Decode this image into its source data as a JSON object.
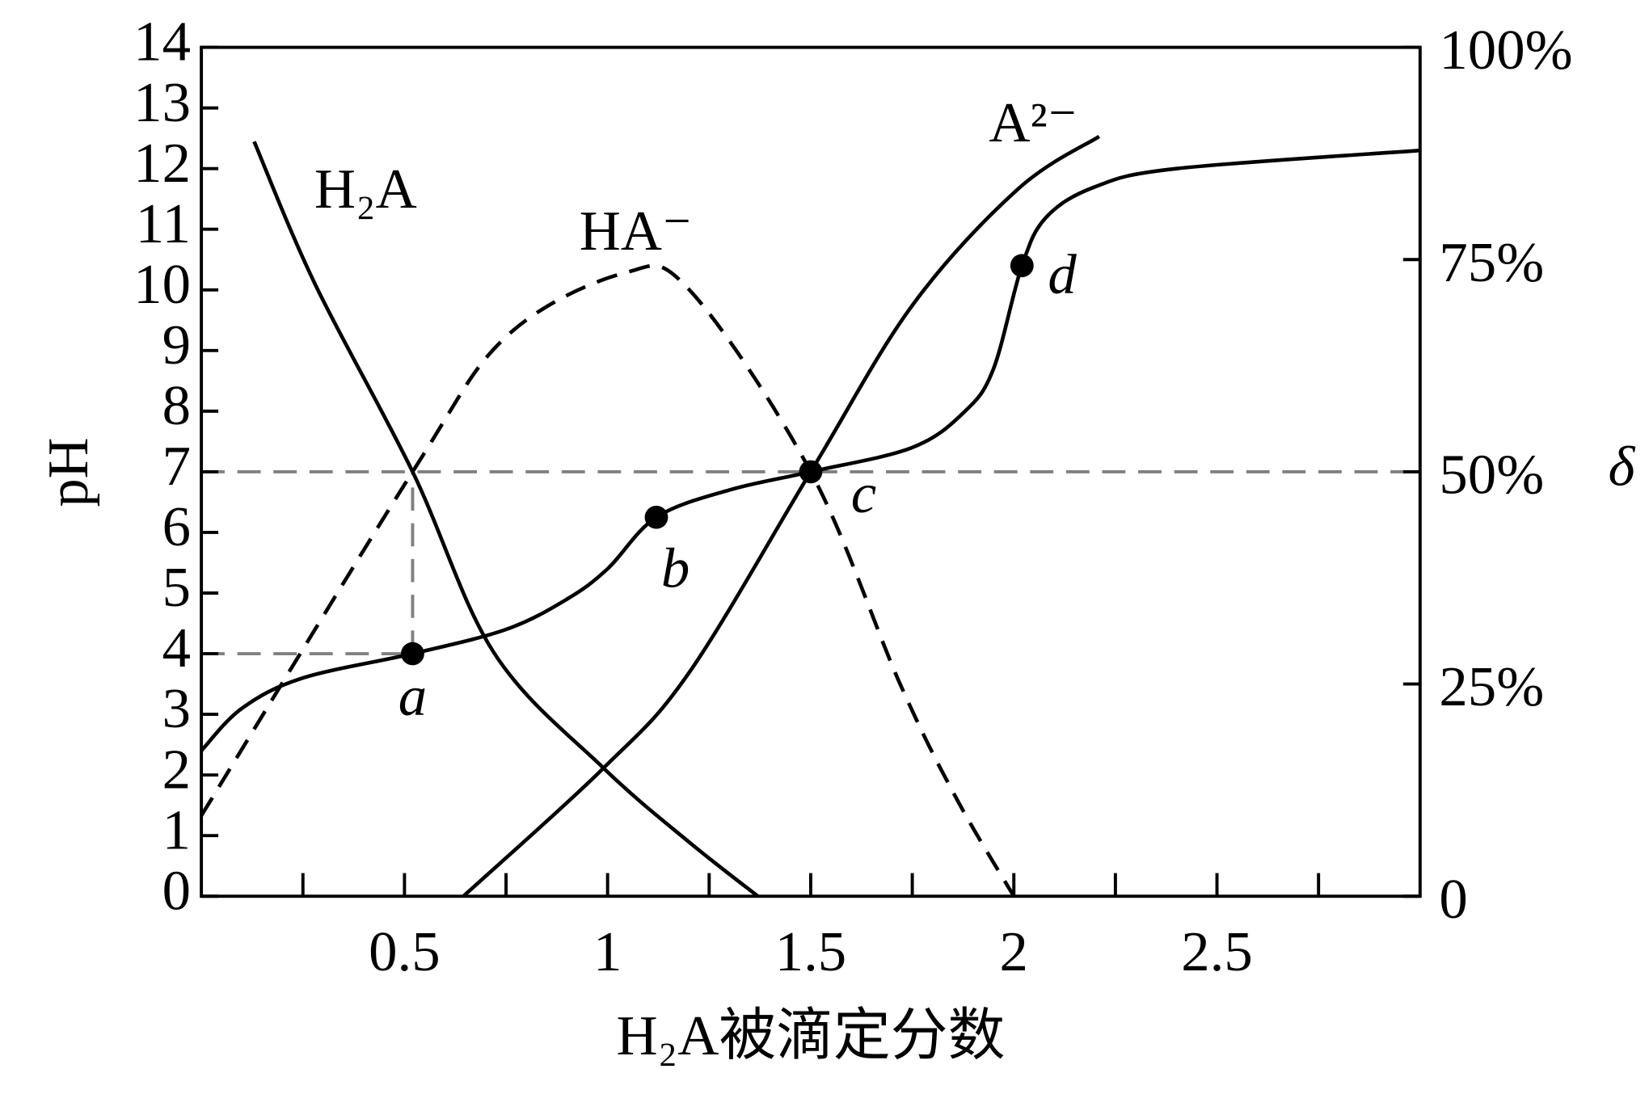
{
  "chart_data": {
    "type": "line",
    "xlabel": "H₂A被滴定分数",
    "ylabel": "pH",
    "y2label": "δ",
    "xlim": [
      0,
      3
    ],
    "xticks": [
      0.5,
      1,
      1.5,
      2,
      2.5
    ],
    "xminorticks": [
      0.25,
      0.75,
      1.25,
      1.75,
      2.25,
      2.75
    ],
    "ylim": [
      0,
      14
    ],
    "yticks": [
      0,
      1,
      2,
      3,
      4,
      5,
      6,
      7,
      8,
      9,
      10,
      11,
      12,
      13,
      14
    ],
    "y2lim": [
      0,
      100
    ],
    "y2ticks": [
      {
        "value": 0,
        "label": "0"
      },
      {
        "value": 25,
        "label": "25%"
      },
      {
        "value": 50,
        "label": "50%"
      },
      {
        "value": 75,
        "label": "75%"
      },
      {
        "value": 100,
        "label": "100%"
      }
    ],
    "series": [
      {
        "color": "#000000",
        "style": "solid",
        "axis": "y",
        "x": [
          0,
          0.1,
          0.25,
          0.52,
          0.75,
          0.9,
          1.0,
          1.12,
          1.3,
          1.5,
          1.75,
          1.88,
          1.95,
          2.02,
          2.08,
          2.2,
          2.4,
          3.0
        ],
        "values": [
          2.4,
          3.1,
          3.6,
          4.0,
          4.4,
          4.9,
          5.4,
          6.25,
          6.7,
          7.0,
          7.4,
          8.0,
          8.7,
          10.4,
          11.2,
          11.7,
          12.0,
          12.3
        ]
      },
      {
        "name": "H₂A",
        "color": "#000000",
        "style": "solid",
        "axis": "y2",
        "x": [
          0.13,
          0.28,
          0.52,
          0.72,
          0.99,
          1.2,
          1.37
        ],
        "values": [
          88.9,
          72.1,
          50,
          28.7,
          15.1,
          6.4,
          0
        ]
      },
      {
        "name": "HA⁻",
        "color": "#000000",
        "style": "dashed",
        "axis": "y2",
        "x": [
          0,
          0.52,
          0.75,
          1.04,
          1.2,
          1.5,
          1.72,
          1.86,
          2.0
        ],
        "values": [
          9.5,
          50,
          65.9,
          73.4,
          71.5,
          50,
          25,
          11.4,
          0
        ]
      },
      {
        "name": "A²⁻",
        "color": "#000000",
        "style": "solid",
        "axis": "y2",
        "x": [
          0.645,
          0.99,
          1.2,
          1.5,
          1.75,
          2.01,
          2.21
        ],
        "values": [
          0,
          15.1,
          26.3,
          50,
          69.6,
          83.3,
          89.5
        ]
      }
    ],
    "points": [
      {
        "label": "a",
        "x": 0.52,
        "y": 4.0
      },
      {
        "label": "b",
        "x": 1.12,
        "y": 6.25
      },
      {
        "label": "c",
        "x": 1.5,
        "y": 7.0
      },
      {
        "label": "d",
        "x": 2.02,
        "y": 10.4
      }
    ]
  }
}
